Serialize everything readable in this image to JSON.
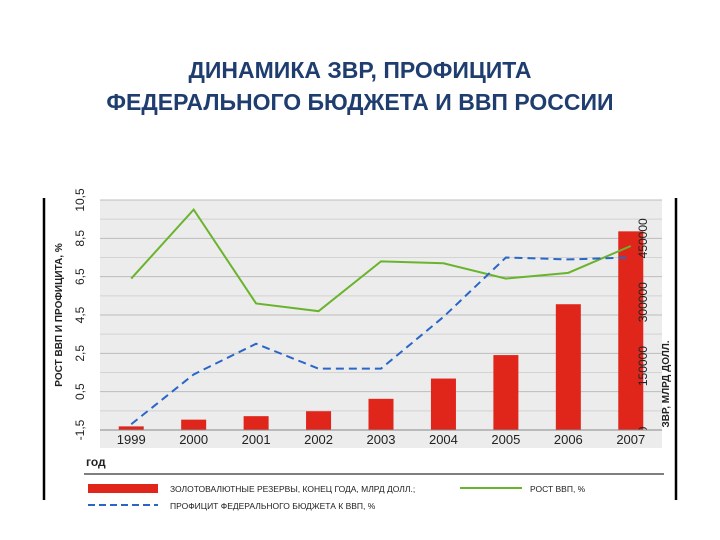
{
  "slide": {
    "title_line1": "ДИНАМИКА ЗВР, ПРОФИЦИТА",
    "title_line2": "ФЕДЕРАЛЬНОГО БЮДЖЕТА И ВВП РОССИИ"
  },
  "chart_data": {
    "type": "bar",
    "title": "",
    "categories": [
      "1999",
      "2000",
      "2001",
      "2002",
      "2003",
      "2004",
      "2005",
      "2006",
      "2007"
    ],
    "xlabel": "год",
    "ylabel_left": "РОСТ ВВП И ПРОФИЦИТА, %",
    "ylabel_right": "ЗВР, МЛРД ДОЛЛ.",
    "y_left_ticks": [
      "-1,5",
      "0,5",
      "2,5",
      "4,5",
      "6,5",
      "8,5",
      "10,5"
    ],
    "y_left_lim": [
      -1.5,
      10.5
    ],
    "y_right_ticks": [
      "0",
      "150000",
      "300000",
      "450000"
    ],
    "y_right_lim": [
      0,
      540000
    ],
    "grid": true,
    "legend_position": "bottom",
    "series": [
      {
        "name": "ЗОЛОТОВАЛЮТНЫЕ РЕЗЕРВЫ, КОНЕЦ ГОДА, МЛРД ДОЛЛ.;",
        "type": "bar",
        "axis": "right",
        "color": "#e0261b",
        "values": [
          8500,
          24300,
          32500,
          44100,
          73200,
          120800,
          175900,
          295300,
          466400
        ]
      },
      {
        "name": "РОСТ ВВП, %",
        "type": "line",
        "axis": "left",
        "color": "#6ab42d",
        "values": [
          6.4,
          10.0,
          5.1,
          4.7,
          7.3,
          7.2,
          6.4,
          6.7,
          8.1
        ]
      },
      {
        "name": "ПРОФИЦИТ ФЕДЕРАЛЬНОГО БЮДЖЕТА К ВВП, %",
        "type": "line",
        "axis": "left",
        "dashed": true,
        "color": "#2a66c8",
        "values": [
          -1.2,
          1.4,
          3.0,
          1.7,
          1.7,
          4.4,
          7.5,
          7.4,
          7.5
        ]
      }
    ]
  }
}
